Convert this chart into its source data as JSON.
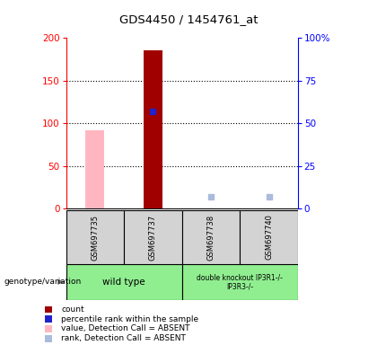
{
  "title": "GDS4450 / 1454761_at",
  "samples": [
    "GSM697735",
    "GSM697737",
    "GSM697738",
    "GSM697740"
  ],
  "groups": [
    {
      "label": "wild type",
      "indices": [
        0,
        1
      ],
      "color": "#90EE90"
    },
    {
      "label": "double knockout IP3R1-/-\nIP3R3-/-",
      "indices": [
        2,
        3
      ],
      "color": "#90EE90"
    }
  ],
  "count_values": [
    null,
    185,
    null,
    null
  ],
  "count_color": "#A00000",
  "percentile_values": [
    null,
    57,
    null,
    null
  ],
  "percentile_color": "#2222CC",
  "value_absent": [
    92,
    null,
    null,
    null
  ],
  "value_absent_color": "#FFB6C1",
  "rank_absent": [
    null,
    null,
    7,
    7
  ],
  "rank_absent_color": "#AABBDD",
  "ylim_left": [
    0,
    200
  ],
  "ylim_right": [
    0,
    100
  ],
  "yticks_left": [
    0,
    50,
    100,
    150,
    200
  ],
  "yticks_right": [
    0,
    25,
    50,
    75,
    100
  ],
  "ytick_labels_right": [
    "0",
    "25",
    "50",
    "75",
    "100%"
  ],
  "bg_color": "#FFFFFF",
  "sample_col_color": "#D3D3D3",
  "genotype_label": "genotype/variation",
  "legend_items": [
    {
      "color": "#A00000",
      "label": "count"
    },
    {
      "color": "#2222CC",
      "label": "percentile rank within the sample"
    },
    {
      "color": "#FFB6C1",
      "label": "value, Detection Call = ABSENT"
    },
    {
      "color": "#AABBDD",
      "label": "rank, Detection Call = ABSENT"
    }
  ]
}
